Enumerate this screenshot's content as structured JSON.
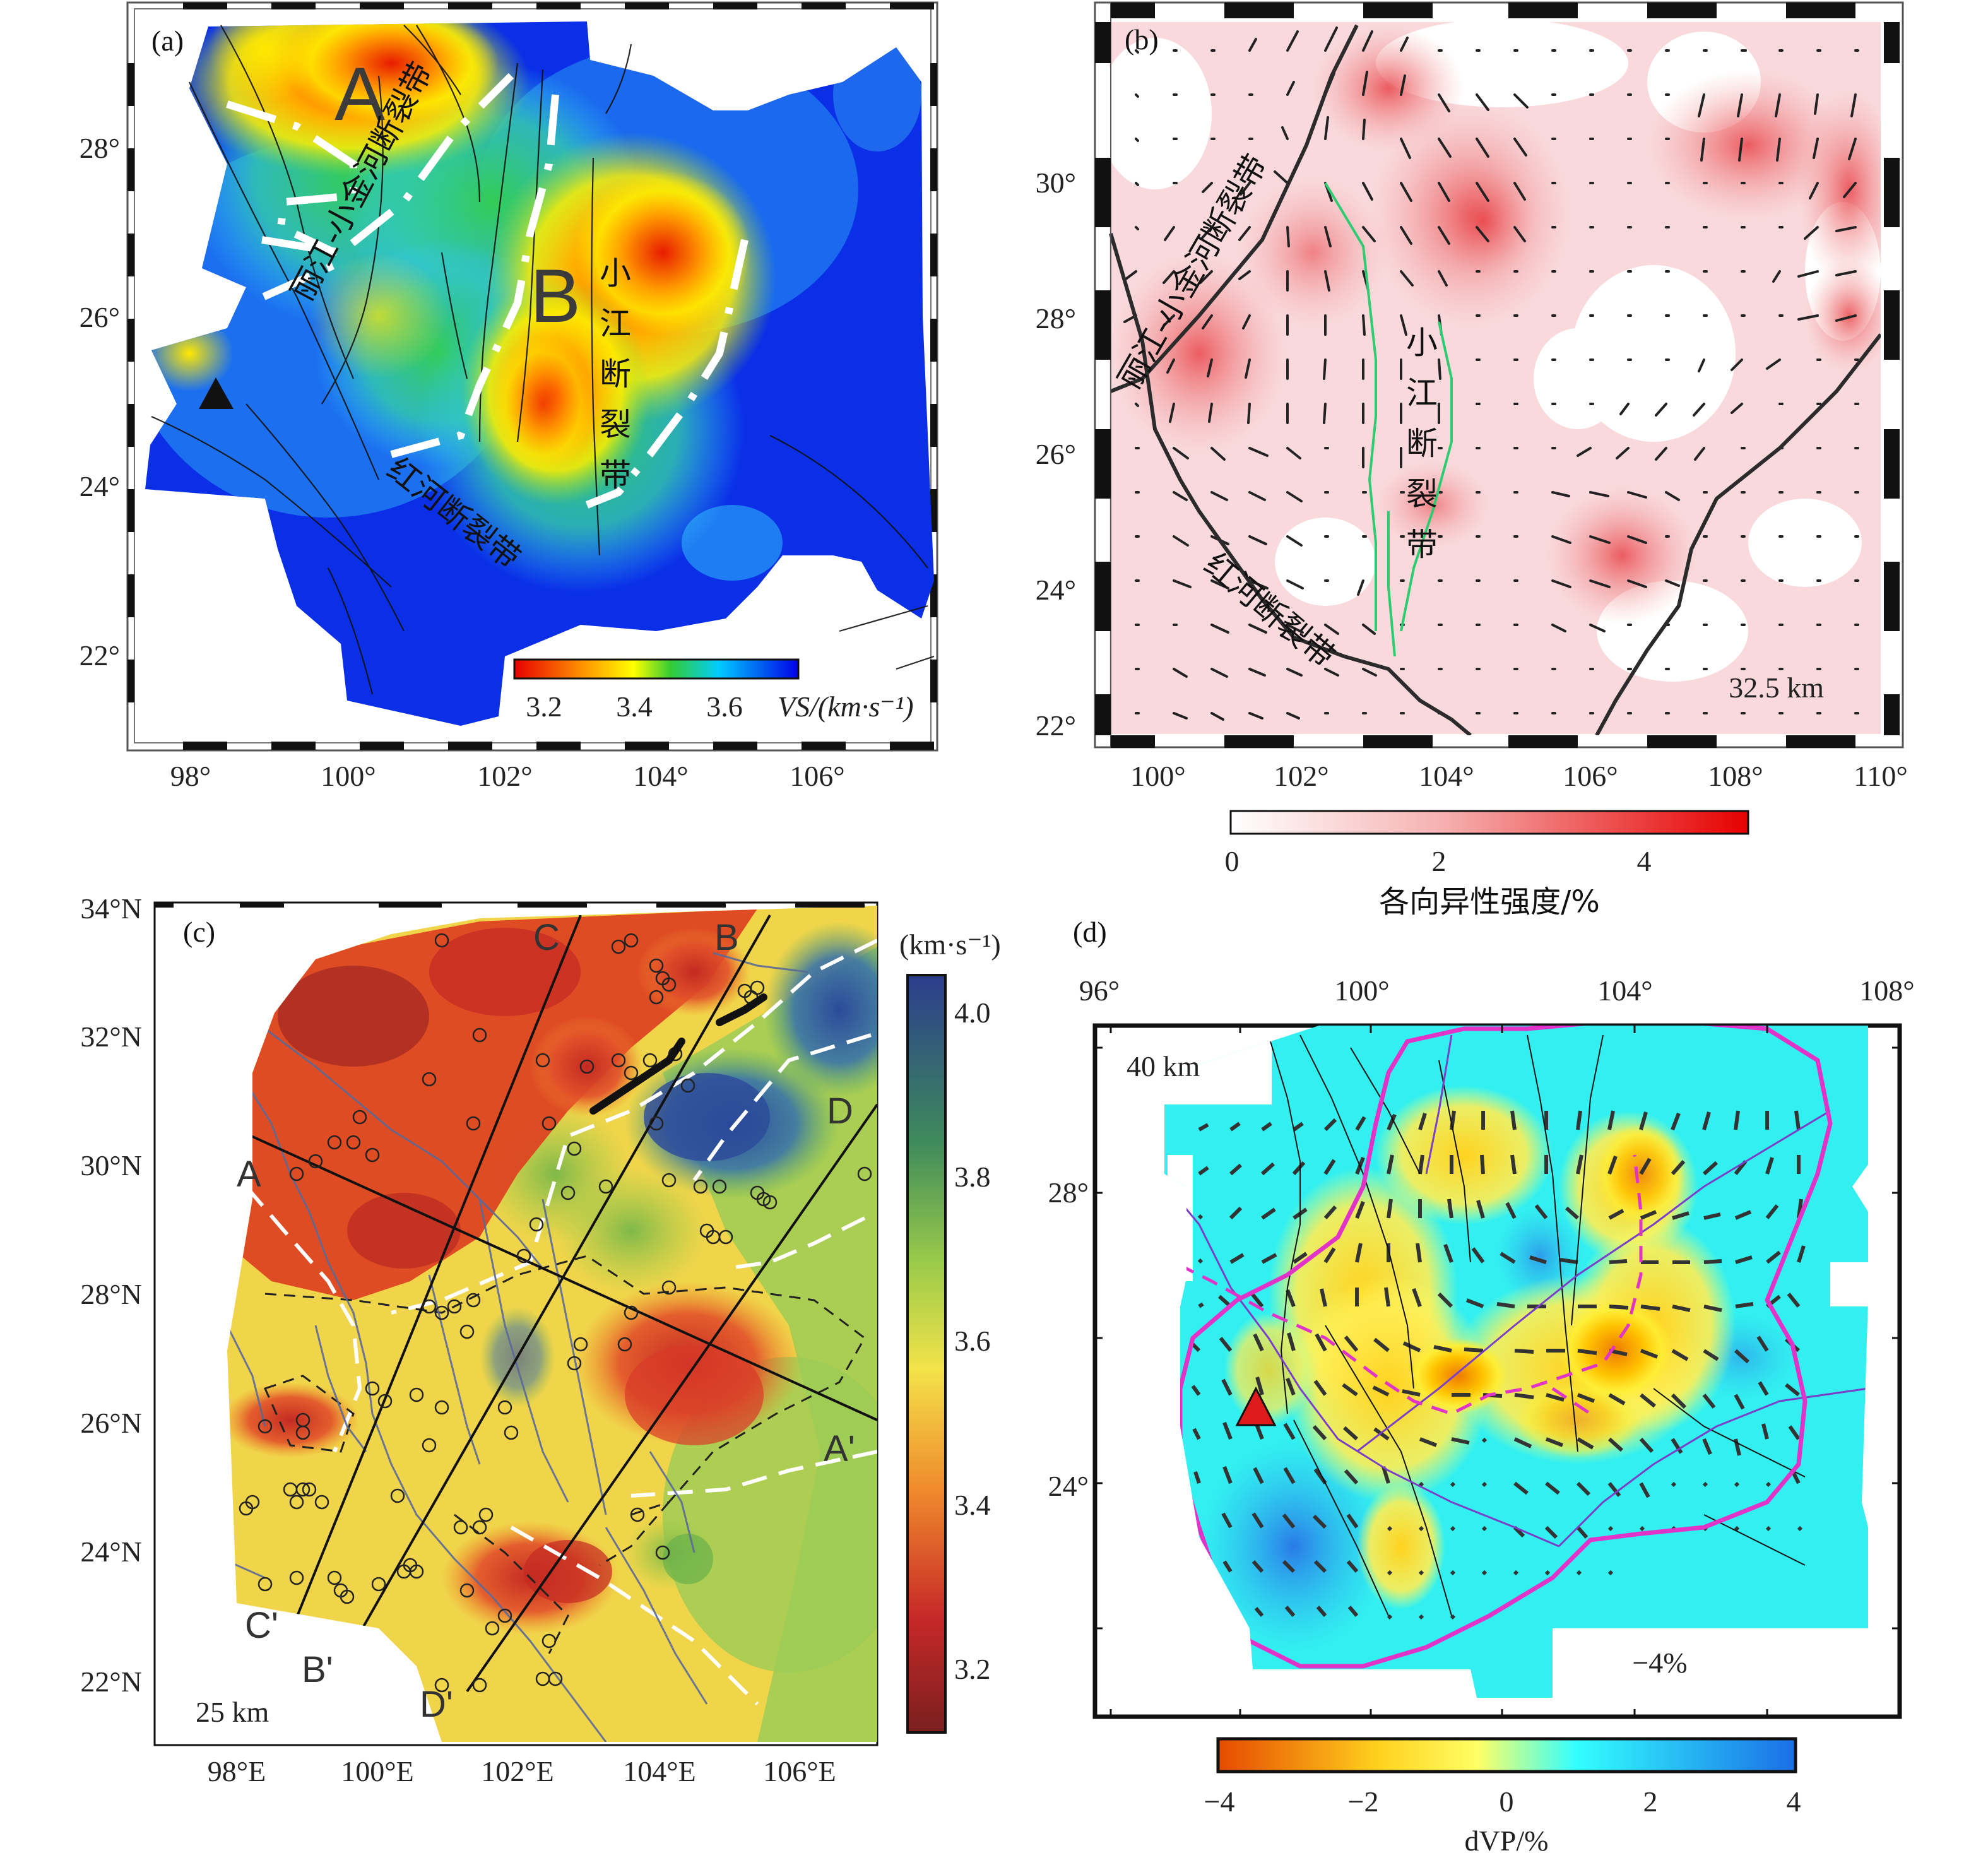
{
  "panel_a": {
    "label": "(a)",
    "lat_ticks": [
      "28°",
      "26°",
      "24°",
      "22°"
    ],
    "lon_ticks": [
      "98°",
      "100°",
      "102°",
      "104°",
      "106°"
    ],
    "zone_a": "A",
    "zone_b": "B",
    "fault_lijiang": "丽江-小金河断裂带",
    "fault_xiaojiang": [
      "小",
      "江",
      "断",
      "裂",
      "带"
    ],
    "fault_honghe": "红河断裂带",
    "colorbar": {
      "ticks": [
        "3.2",
        "3.4",
        "3.6"
      ],
      "unit": "VS/(km·s⁻¹)",
      "colors": [
        "#e60000",
        "#ff9900",
        "#ffff00",
        "#33cc33",
        "#00ccff",
        "#0000e6"
      ]
    }
  },
  "panel_b": {
    "label": "(b)",
    "lat_ticks": [
      "30°",
      "28°",
      "26°",
      "24°",
      "22°"
    ],
    "lon_ticks": [
      "100°",
      "102°",
      "104°",
      "106°",
      "108°",
      "110°"
    ],
    "fault_lijiang": "丽江-小金河断裂带",
    "fault_xiaojiang": [
      "小",
      "江",
      "断",
      "裂",
      "带"
    ],
    "fault_honghe": "红河断裂带",
    "depth": "32.5 km",
    "colorbar": {
      "ticks": [
        "0",
        "2",
        "4"
      ],
      "title": "各向异性强度/%",
      "colors": [
        "#ffffff",
        "#f6b3b3",
        "#e60000"
      ]
    }
  },
  "panel_c": {
    "label": "(c)",
    "lat_ticks": [
      "34°N",
      "32°N",
      "30°N",
      "28°N",
      "26°N",
      "24°N",
      "22°N"
    ],
    "lon_ticks": [
      "98°E",
      "100°E",
      "102°E",
      "104°E",
      "106°E"
    ],
    "profile_labels": [
      "A",
      "A'",
      "B",
      "B'",
      "C",
      "C'",
      "D",
      "D'"
    ],
    "depth": "25 km",
    "colorbar": {
      "unit": "(km·s⁻¹)",
      "ticks": [
        "4.0",
        "3.8",
        "3.6",
        "3.4",
        "3.2"
      ],
      "colors": [
        "#2b3d8c",
        "#3f8a5c",
        "#9acb4a",
        "#f2e34a",
        "#f08a2c",
        "#c62828",
        "#7a1f1f"
      ]
    }
  },
  "panel_d": {
    "label": "(d)",
    "lon_ticks": [
      "96°",
      "100°",
      "104°",
      "108°"
    ],
    "lat_ticks": [
      "28°",
      "24°"
    ],
    "depth": "40 km",
    "contour_label": "−4%",
    "colorbar": {
      "ticks": [
        "−4",
        "−2",
        "0",
        "2",
        "4"
      ],
      "title": "dVP/%",
      "colors": [
        "#e64a00",
        "#ffd21f",
        "#ffff66",
        "#33ffff",
        "#1a6fe6"
      ]
    }
  }
}
